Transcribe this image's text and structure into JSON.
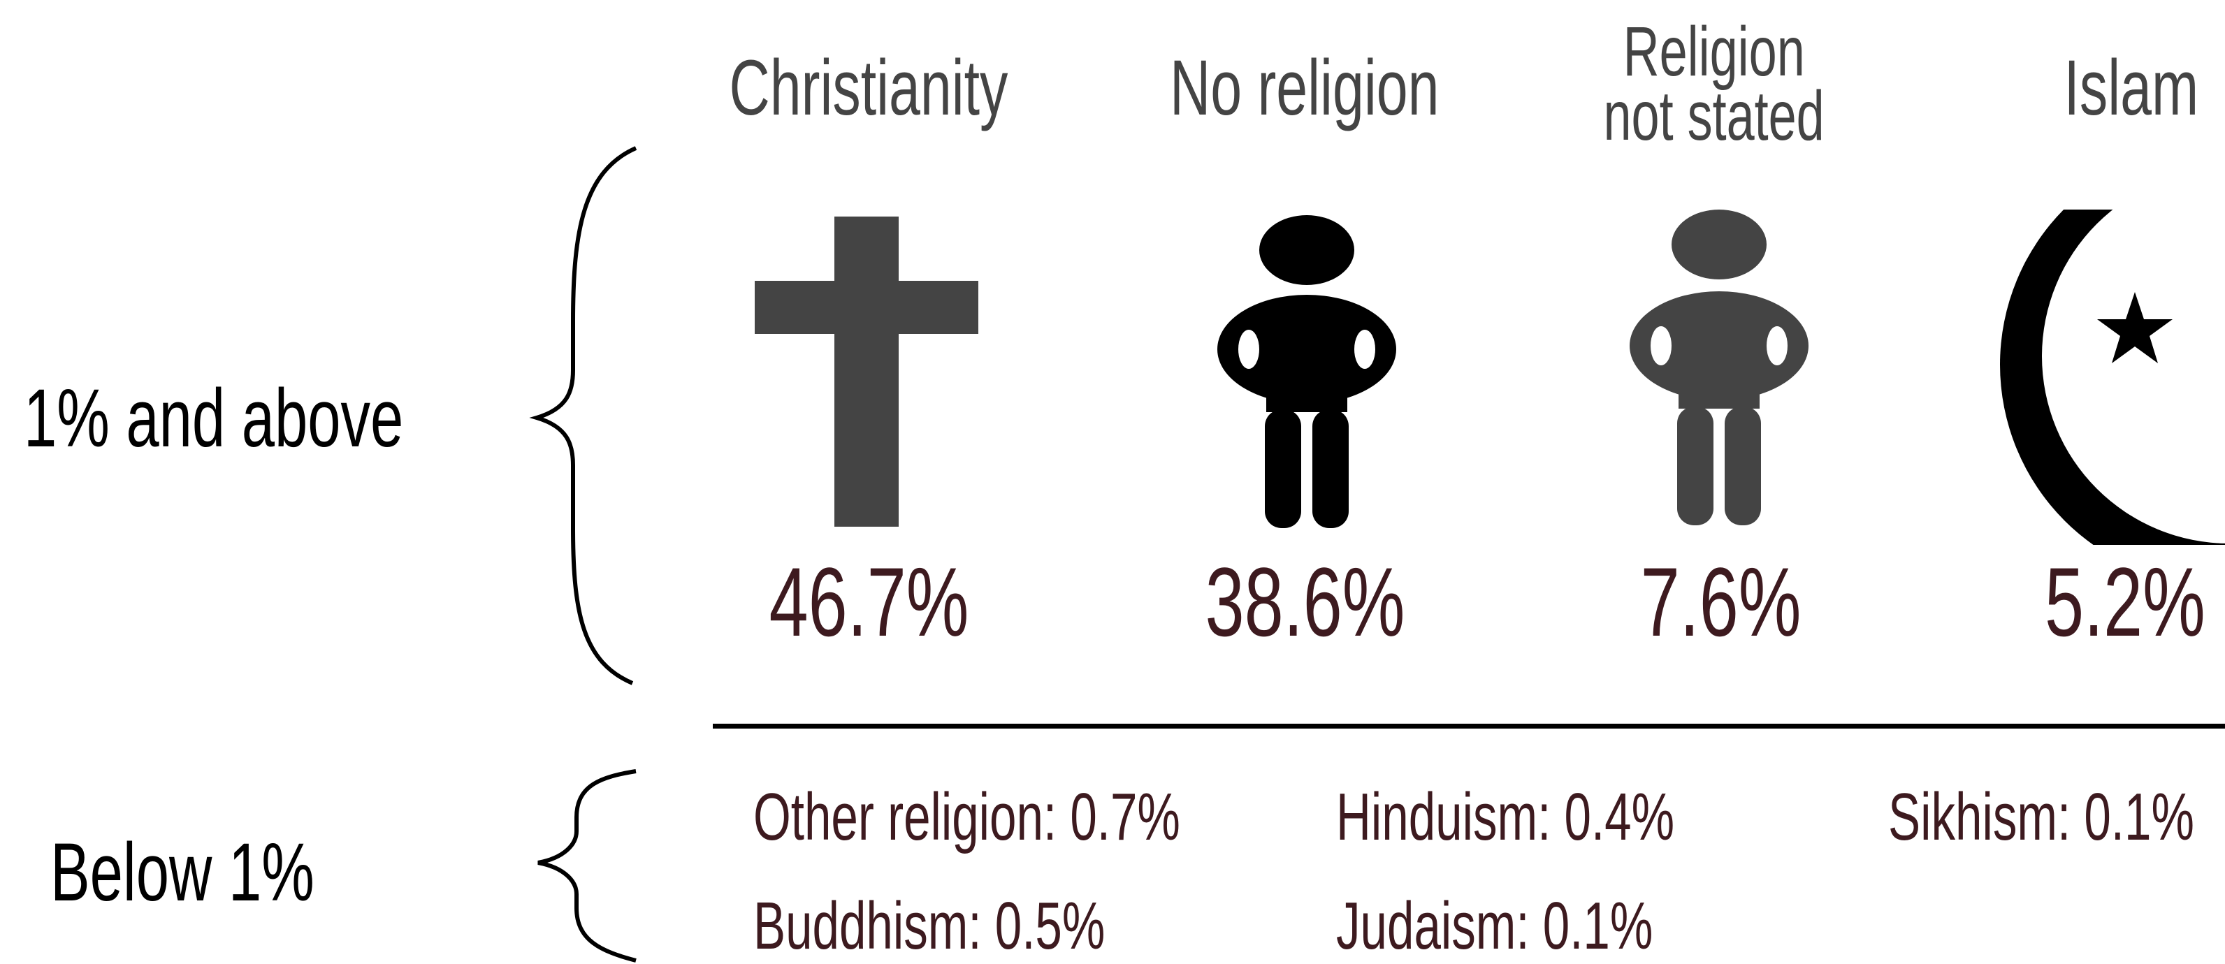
{
  "sections": {
    "above": "1% and above",
    "below": "Below 1%"
  },
  "chart_data": {
    "type": "pictogram",
    "unit": "%",
    "major": [
      {
        "name": "Christianity",
        "value": 46.7,
        "label": "46.7%",
        "icon": "cross-icon",
        "color": "#444444"
      },
      {
        "name": "No religion",
        "value": 38.6,
        "label": "38.6%",
        "icon": "person-icon",
        "color": "#000000"
      },
      {
        "name_lines": [
          "Religion",
          "not stated"
        ],
        "value": 7.6,
        "label": "7.6%",
        "icon": "person-icon",
        "color": "#444444"
      },
      {
        "name": "Islam",
        "value": 5.2,
        "label": "5.2%",
        "icon": "crescent-star-icon",
        "color": "#000000"
      }
    ],
    "minor": [
      {
        "text": "Other religion: 0.7%",
        "name": "Other religion",
        "value": 0.7
      },
      {
        "text": "Hinduism: 0.4%",
        "name": "Hinduism",
        "value": 0.4
      },
      {
        "text": "Sikhism: 0.1%",
        "name": "Sikhism",
        "value": 0.1
      },
      {
        "text": "Buddhism: 0.5%",
        "name": "Buddhism",
        "value": 0.5
      },
      {
        "text": "Judaism: 0.1%",
        "name": "Judaism",
        "value": 0.1
      }
    ]
  },
  "colors": {
    "value_text": "#3d1a1f",
    "label_text": "#444444",
    "dark_icon": "#000000",
    "grey_icon": "#444444"
  }
}
